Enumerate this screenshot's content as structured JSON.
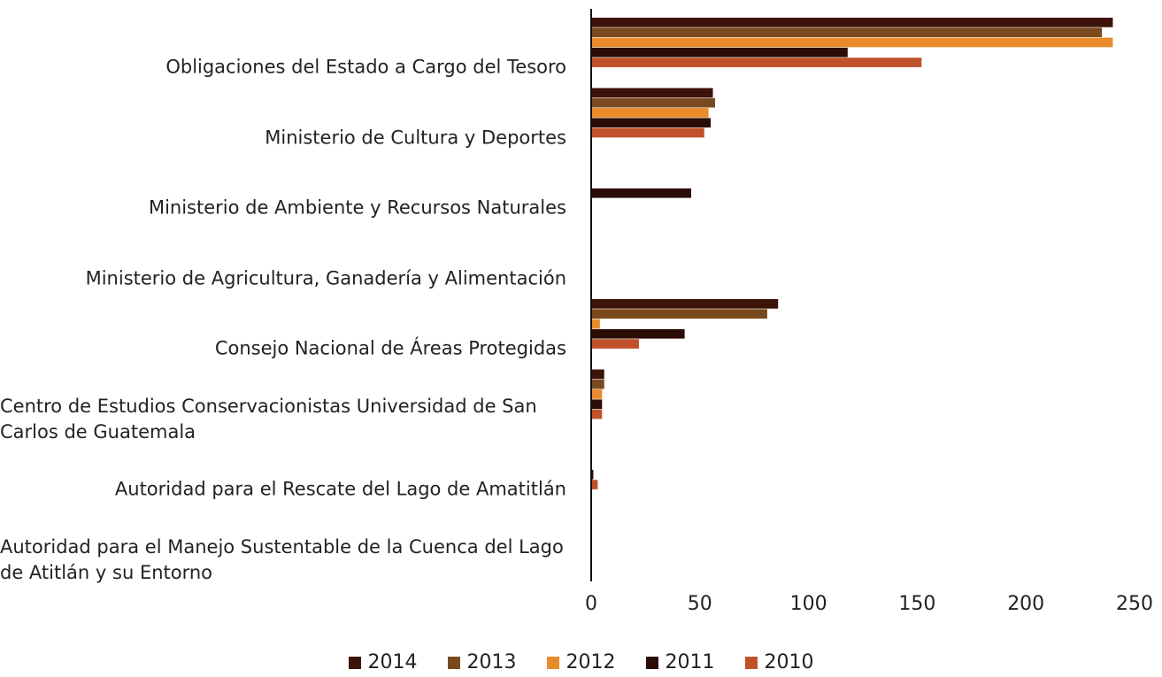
{
  "chart_data": {
    "type": "hbar",
    "categories": [
      "Obligaciones del Estado a Cargo del Tesoro",
      "Ministerio de Cultura y Deportes",
      "Ministerio de Ambiente y Recursos Naturales",
      "Ministerio de Agricultura, Ganadería y Alimentación",
      "Consejo Nacional de Áreas Protegidas",
      "Centro de Estudios Conservacionistas Universidad de San Carlos de Guatemala",
      "Autoridad para el Rescate del Lago de Amatitlán",
      "Autoridad para el Manejo Sustentable de la Cuenca del Lago de Atitlán y su Entorno"
    ],
    "series": [
      {
        "name": "2014",
        "color": "#3d1208",
        "values": [
          240,
          56,
          0,
          0,
          86,
          6,
          0,
          0
        ]
      },
      {
        "name": "2013",
        "color": "#7a4a1e",
        "values": [
          235,
          57,
          0,
          0,
          81,
          6,
          0,
          0
        ]
      },
      {
        "name": "2012",
        "color": "#e98b2a",
        "values": [
          240,
          54,
          0,
          0,
          4,
          5,
          0,
          0
        ]
      },
      {
        "name": "2011",
        "color": "#2b0d06",
        "values": [
          118,
          55,
          46,
          0,
          43,
          5,
          1,
          0
        ]
      },
      {
        "name": "2010",
        "color": "#c0522b",
        "values": [
          152,
          52,
          0,
          0,
          22,
          5,
          3,
          0
        ]
      }
    ],
    "xlim": [
      0,
      250
    ],
    "xticks": [
      0,
      50,
      100,
      150,
      200,
      250
    ],
    "grid": false,
    "legend": "bottom"
  }
}
